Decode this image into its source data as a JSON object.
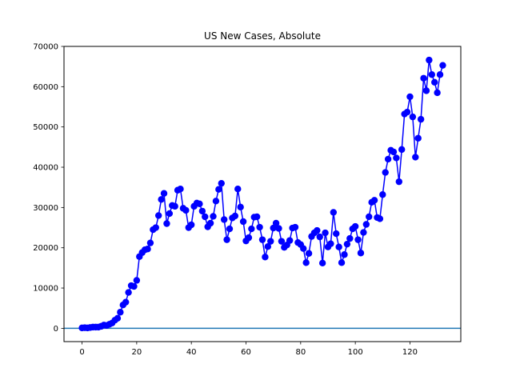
{
  "chart_data": {
    "type": "line",
    "title": "US New Cases, Absolute",
    "xlabel": "",
    "ylabel": "",
    "xlim": [
      -6.6,
      138.6
    ],
    "ylim": [
      -3300,
      70000
    ],
    "xticks": [
      0,
      20,
      40,
      60,
      80,
      100,
      120
    ],
    "xtick_labels": [
      "0",
      "20",
      "40",
      "60",
      "80",
      "100",
      "120"
    ],
    "yticks": [
      0,
      10000,
      20000,
      30000,
      40000,
      50000,
      60000,
      70000
    ],
    "ytick_labels": [
      "0",
      "10000",
      "20000",
      "30000",
      "40000",
      "50000",
      "60000",
      "70000"
    ],
    "grid": false,
    "series": [
      {
        "color": "#0000ff",
        "marker": "circle",
        "x": [
          0,
          1,
          2,
          3,
          4,
          5,
          6,
          7,
          8,
          9,
          10,
          11,
          12,
          13,
          14,
          15,
          16,
          17,
          18,
          19,
          20,
          21,
          22,
          23,
          24,
          25,
          26,
          27,
          28,
          29,
          30,
          31,
          32,
          33,
          34,
          35,
          36,
          37,
          38,
          39,
          40,
          41,
          42,
          43,
          44,
          45,
          46,
          47,
          48,
          49,
          50,
          51,
          52,
          53,
          54,
          55,
          56,
          57,
          58,
          59,
          60,
          61,
          62,
          63,
          64,
          65,
          66,
          67,
          68,
          69,
          70,
          71,
          72,
          73,
          74,
          75,
          76,
          77,
          78,
          79,
          80,
          81,
          82,
          83,
          84,
          85,
          86,
          87,
          88,
          89,
          90,
          91,
          92,
          93,
          94,
          95,
          96,
          97,
          98,
          99,
          100,
          101,
          102,
          103,
          104,
          105,
          106,
          107,
          108,
          109,
          110,
          111,
          112,
          113,
          114,
          115,
          116,
          117,
          118,
          119,
          120,
          121,
          122,
          123,
          124,
          125,
          126,
          127,
          128,
          129,
          130,
          131,
          132
        ],
        "values": [
          100,
          150,
          100,
          200,
          300,
          300,
          300,
          500,
          800,
          700,
          1000,
          1300,
          2000,
          2500,
          4000,
          5800,
          6500,
          8900,
          10600,
          10400,
          11900,
          17800,
          18800,
          19500,
          19700,
          21200,
          24500,
          25000,
          28000,
          32000,
          33500,
          26000,
          28500,
          30500,
          30300,
          34300,
          34600,
          29800,
          29300,
          25000,
          25700,
          30300,
          31100,
          30900,
          29100,
          27700,
          25200,
          26100,
          27800,
          31600,
          34500,
          36000,
          27000,
          22000,
          24700,
          27400,
          27900,
          34600,
          30100,
          26500,
          21700,
          22500,
          24700,
          27600,
          27700,
          25100,
          22000,
          17700,
          20300,
          21600,
          24900,
          26100,
          24800,
          21600,
          20100,
          20700,
          21800,
          24900,
          25100,
          21300,
          20800,
          19800,
          16300,
          18600,
          22800,
          23700,
          24300,
          22700,
          16200,
          23700,
          20200,
          21000,
          28800,
          23500,
          20200,
          16300,
          18300,
          20900,
          22300,
          24700,
          25300,
          22000,
          18700,
          23800,
          25800,
          27700,
          31300,
          31800,
          27500,
          27200,
          33200,
          38700,
          42000,
          44200,
          43800,
          42300,
          36400,
          44400,
          53200,
          53700,
          57500,
          52500,
          42500,
          47200,
          51900,
          62100,
          59000,
          66600,
          63000,
          61100,
          58500,
          63000,
          65300
        ]
      }
    ],
    "reference_line": {
      "y": 0,
      "color": "#1f77b4"
    }
  }
}
